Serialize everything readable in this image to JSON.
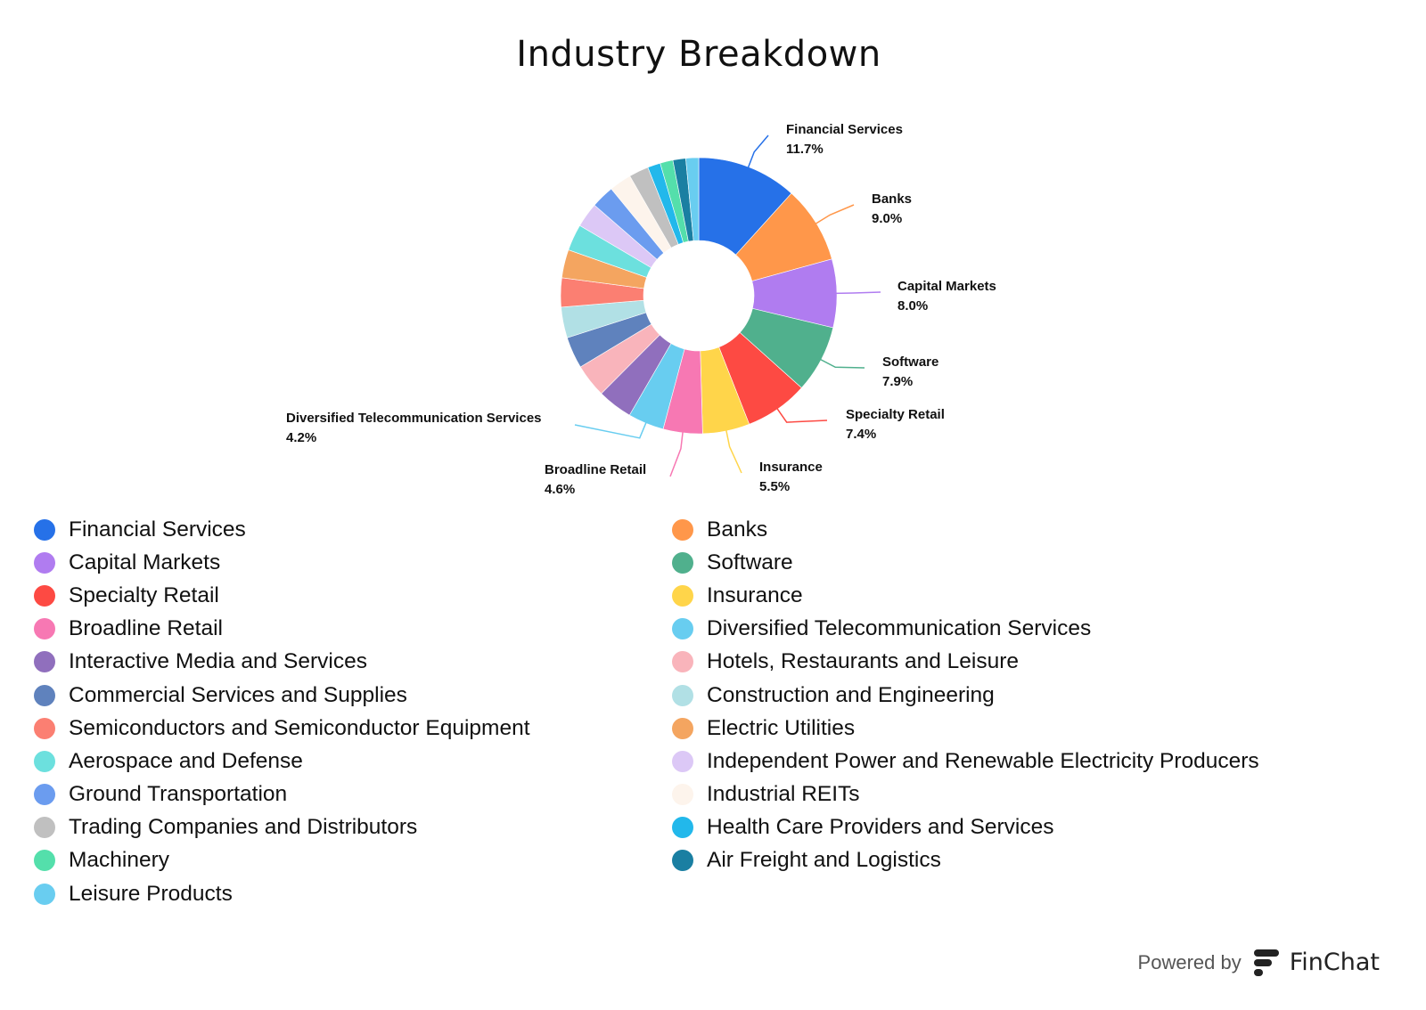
{
  "chart_data": {
    "type": "pie",
    "variant": "donut",
    "title": "Industry Breakdown",
    "start": "12 o'clock, clockwise",
    "legend_position": "bottom",
    "slices": [
      {
        "label": "Financial Services",
        "value": 11.7,
        "color": "#2671e8",
        "shown_label": "11.7%"
      },
      {
        "label": "Banks",
        "value": 9.0,
        "color": "#ff974a",
        "shown_label": "9.0%"
      },
      {
        "label": "Capital Markets",
        "value": 8.0,
        "color": "#b07cf0",
        "shown_label": "8.0%"
      },
      {
        "label": "Software",
        "value": 7.9,
        "color": "#50b08d",
        "shown_label": "7.9%"
      },
      {
        "label": "Specialty Retail",
        "value": 7.4,
        "color": "#fd4a43",
        "shown_label": "7.4%"
      },
      {
        "label": "Insurance",
        "value": 5.5,
        "color": "#ffd54a",
        "shown_label": "5.5%"
      },
      {
        "label": "Broadline Retail",
        "value": 4.6,
        "color": "#f778b3",
        "shown_label": "4.6%"
      },
      {
        "label": "Diversified Telecommunication Services",
        "value": 4.2,
        "color": "#68cdf0",
        "shown_label": "4.2%"
      },
      {
        "label": "Interactive Media and Services",
        "value": 4.1,
        "color": "#906fbd"
      },
      {
        "label": "Hotels, Restaurants and Leisure",
        "value": 3.9,
        "color": "#f9b4bb"
      },
      {
        "label": "Commercial Services and Supplies",
        "value": 3.7,
        "color": "#5f82bd"
      },
      {
        "label": "Construction and Engineering",
        "value": 3.6,
        "color": "#b1e0e5"
      },
      {
        "label": "Semiconductors and Semiconductor Equipment",
        "value": 3.4,
        "color": "#fb7f72"
      },
      {
        "label": "Electric Utilities",
        "value": 3.3,
        "color": "#f4a560"
      },
      {
        "label": "Aerospace and Defense",
        "value": 3.1,
        "color": "#6ce0de"
      },
      {
        "label": "Independent Power and Renewable Electricity Producers",
        "value": 2.9,
        "color": "#dcc8f6"
      },
      {
        "label": "Ground Transportation",
        "value": 2.7,
        "color": "#6b9cef"
      },
      {
        "label": "Industrial REITs",
        "value": 2.6,
        "color": "#fdf4ec"
      },
      {
        "label": "Trading Companies and Distributors",
        "value": 2.3,
        "color": "#c0c0c0"
      },
      {
        "label": "Health Care Providers and Services",
        "value": 1.5,
        "color": "#22b8eb"
      },
      {
        "label": "Machinery",
        "value": 1.5,
        "color": "#54dfab"
      },
      {
        "label": "Air Freight and Logistics",
        "value": 1.5,
        "color": "#1a7fa2"
      },
      {
        "label": "Leisure Products",
        "value": 1.5,
        "color": "#69cdf0"
      }
    ]
  },
  "footer": {
    "powered_by": "Powered by",
    "brand": "FinChat"
  }
}
